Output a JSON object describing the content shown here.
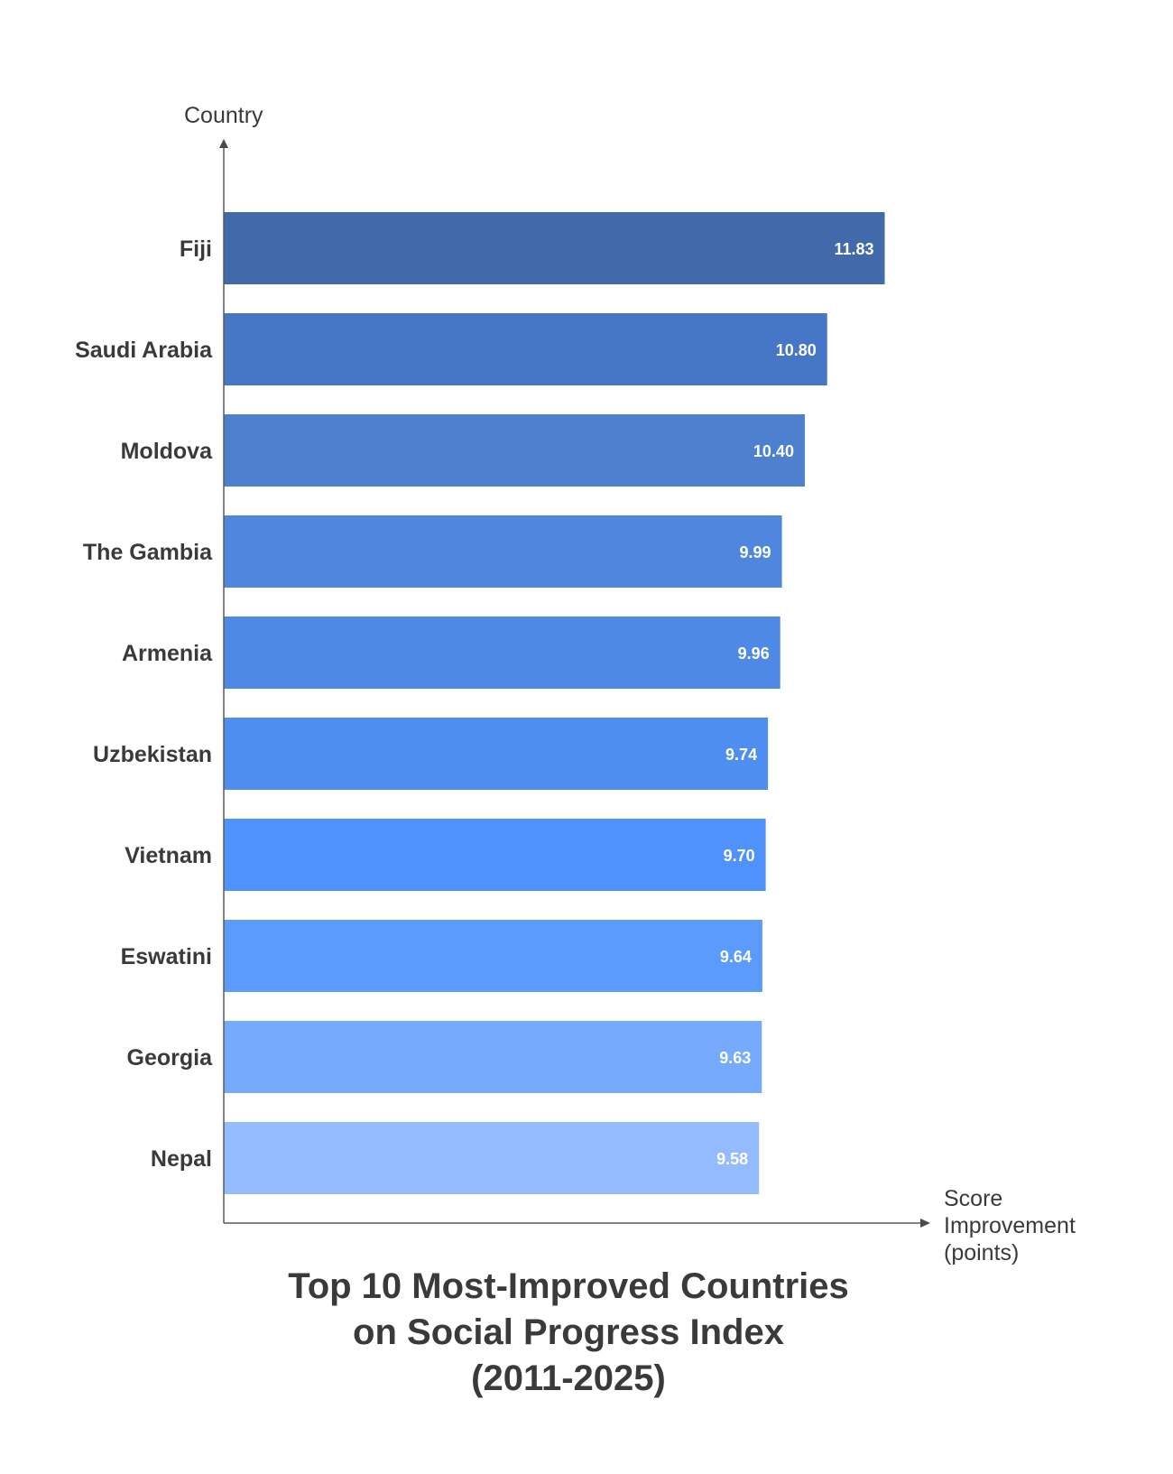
{
  "chart_data": {
    "type": "bar",
    "orientation": "horizontal",
    "title_lines": [
      "Top 10 Most-Improved Countries",
      "on Social Progress Index",
      "(2011-2025)"
    ],
    "ylabel": "Country",
    "xlabel_lines": [
      "Score",
      "Improvement",
      "(points)"
    ],
    "categories": [
      "Fiji",
      "Saudi Arabia",
      "Moldova",
      "The Gambia",
      "Armenia",
      "Uzbekistan",
      "Vietnam",
      "Eswatini",
      "Georgia",
      "Nepal"
    ],
    "values": [
      11.83,
      10.8,
      10.4,
      9.99,
      9.96,
      9.74,
      9.7,
      9.64,
      9.63,
      9.58
    ],
    "value_labels": [
      "11.83",
      "10.80",
      "10.40",
      "9.99",
      "9.96",
      "9.74",
      "9.70",
      "9.64",
      "9.63",
      "9.58"
    ],
    "colors": [
      "#4269aa",
      "#4676c6",
      "#4e80d0",
      "#4f87de",
      "#4f89e6",
      "#4f8ef1",
      "#4f92fb",
      "#5b9bfd",
      "#75aafd",
      "#94bbfd"
    ],
    "xlim": [
      0,
      12.5
    ],
    "grid": false,
    "legend": "none"
  }
}
